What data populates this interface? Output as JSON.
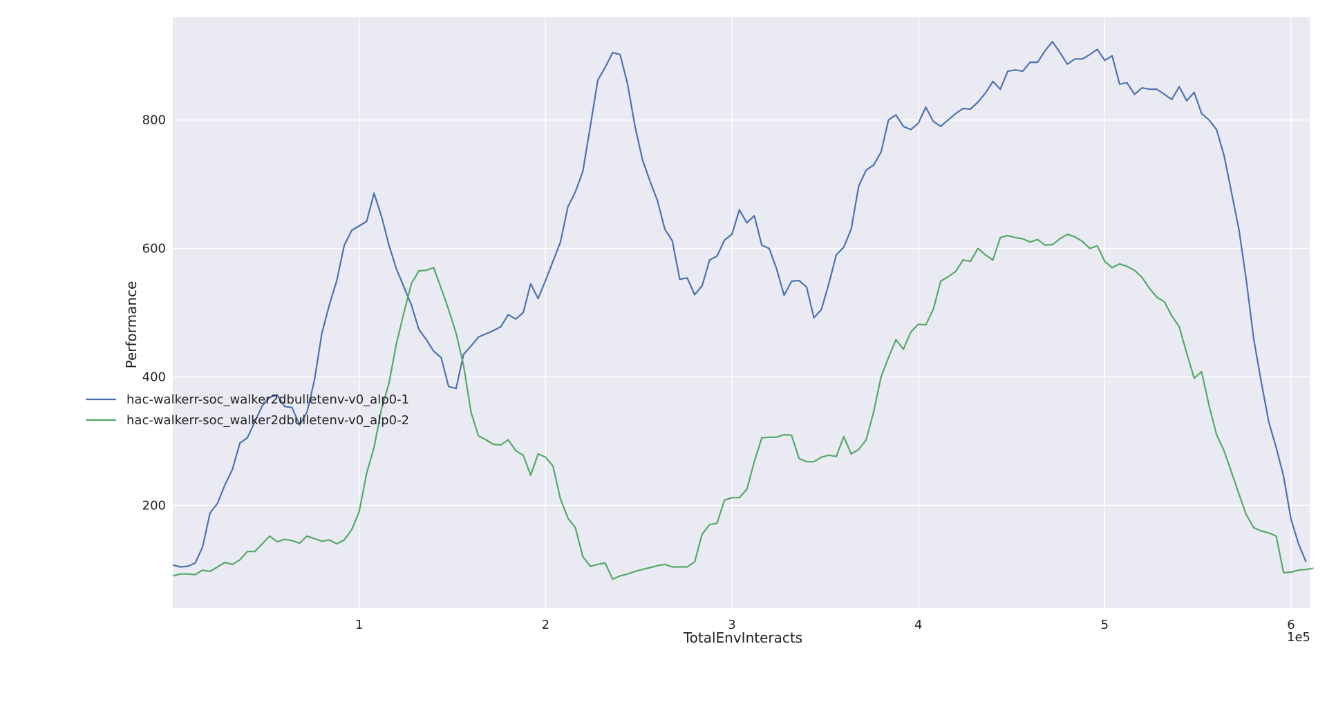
{
  "chart_data": {
    "type": "line",
    "xlabel": "TotalEnvInteracts",
    "ylabel": "Performance",
    "x_multiplier_label": "1e5",
    "xlim": [
      0,
      610000
    ],
    "ylim": [
      40,
      960
    ],
    "xticks": [
      {
        "value": 100000,
        "label": "1"
      },
      {
        "value": 200000,
        "label": "2"
      },
      {
        "value": 300000,
        "label": "3"
      },
      {
        "value": 400000,
        "label": "4"
      },
      {
        "value": 500000,
        "label": "5"
      },
      {
        "value": 600000,
        "label": "6"
      }
    ],
    "yticks": [
      {
        "value": 200,
        "label": "200"
      },
      {
        "value": 400,
        "label": "400"
      },
      {
        "value": 600,
        "label": "600"
      },
      {
        "value": 800,
        "label": "800"
      }
    ],
    "grid": true,
    "background": "#EAEAF2",
    "legend_position": "center-left",
    "x_step": 4000,
    "series": [
      {
        "name": "hac-walkerr-soc_walker2dbulletenv-v0_alp0-1",
        "color": "#4C72B0",
        "values": [
          107,
          104,
          105,
          110,
          135,
          188,
          203,
          232,
          256,
          297,
          305,
          330,
          355,
          368,
          372,
          354,
          352,
          325,
          345,
          395,
          468,
          512,
          550,
          605,
          628,
          635,
          642,
          686,
          650,
          605,
          568,
          540,
          512,
          474,
          458,
          440,
          430,
          385,
          382,
          435,
          448,
          462,
          467,
          472,
          478,
          497,
          490,
          500,
          545,
          522,
          550,
          580,
          610,
          665,
          688,
          720,
          790,
          862,
          882,
          905,
          902,
          856,
          790,
          738,
          705,
          675,
          630,
          612,
          552,
          554,
          528,
          542,
          582,
          588,
          613,
          622,
          660,
          640,
          651,
          605,
          600,
          568,
          527,
          549,
          550,
          540,
          492,
          505,
          545,
          590,
          602,
          630,
          697,
          722,
          730,
          750,
          800,
          808,
          790,
          785,
          795,
          820,
          798,
          790,
          800,
          810,
          818,
          817,
          828,
          842,
          860,
          848,
          876,
          878,
          876,
          890,
          890,
          908,
          922,
          905,
          887,
          895,
          895,
          902,
          910,
          893,
          900,
          856,
          858,
          840,
          850,
          848,
          848,
          840,
          832,
          852,
          830,
          843,
          810,
          800,
          785,
          745,
          688,
          630,
          550,
          458,
          392,
          330,
          290,
          245,
          178,
          140,
          112
        ]
      },
      {
        "name": "hac-walkerr-soc_walker2dbulletenv-v0_alp0-2",
        "color": "#55A868",
        "values": [
          90,
          93,
          93,
          92,
          99,
          97,
          104,
          111,
          108,
          115,
          128,
          128,
          140,
          152,
          143,
          147,
          145,
          141,
          152,
          148,
          144,
          146,
          140,
          146,
          162,
          190,
          250,
          290,
          350,
          390,
          452,
          500,
          545,
          565,
          566,
          570,
          538,
          505,
          468,
          418,
          345,
          308,
          302,
          295,
          294,
          302,
          285,
          278,
          247,
          280,
          275,
          261,
          210,
          180,
          165,
          120,
          105,
          108,
          110,
          85,
          90,
          93,
          97,
          100,
          103,
          106,
          108,
          104,
          104,
          104,
          112,
          155,
          170,
          172,
          208,
          212,
          212,
          225,
          268,
          305,
          306,
          306,
          310,
          309,
          273,
          268,
          268,
          275,
          278,
          276,
          307,
          280,
          287,
          302,
          345,
          400,
          430,
          458,
          443,
          470,
          482,
          481,
          505,
          549,
          556,
          564,
          582,
          580,
          600,
          590,
          582,
          617,
          620,
          617,
          615,
          610,
          614,
          605,
          606,
          615,
          622,
          618,
          611,
          600,
          604,
          580,
          570,
          576,
          572,
          566,
          555,
          538,
          524,
          517,
          495,
          478,
          437,
          398,
          408,
          355,
          310,
          285,
          252,
          218,
          185,
          165,
          160,
          157,
          152,
          95,
          96,
          99,
          100,
          102
        ]
      }
    ]
  }
}
